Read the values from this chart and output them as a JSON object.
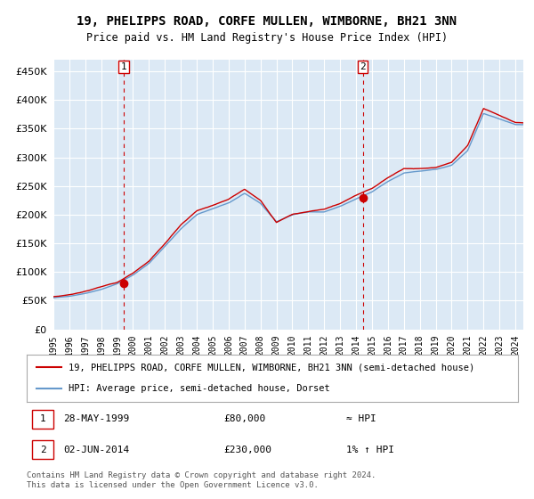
{
  "title": "19, PHELIPPS ROAD, CORFE MULLEN, WIMBORNE, BH21 3NN",
  "subtitle": "Price paid vs. HM Land Registry's House Price Index (HPI)",
  "xlabel": "",
  "ylabel": "",
  "ylim": [
    0,
    470000
  ],
  "yticks": [
    0,
    50000,
    100000,
    150000,
    200000,
    250000,
    300000,
    350000,
    400000,
    450000
  ],
  "ytick_labels": [
    "£0",
    "£50K",
    "£100K",
    "£150K",
    "£200K",
    "£250K",
    "£300K",
    "£350K",
    "£400K",
    "£450K"
  ],
  "bg_color": "#dce9f5",
  "plot_bg": "#dce9f5",
  "grid_color": "#ffffff",
  "hpi_color": "#6699cc",
  "price_color": "#cc0000",
  "marker_color": "#cc0000",
  "vline_color": "#cc0000",
  "sale1_year": 1999.41,
  "sale1_price": 80000,
  "sale2_year": 2014.42,
  "sale2_price": 230000,
  "start_year": 1995,
  "end_year": 2024.5,
  "legend_label_red": "19, PHELIPPS ROAD, CORFE MULLEN, WIMBORNE, BH21 3NN (semi-detached house)",
  "legend_label_blue": "HPI: Average price, semi-detached house, Dorset",
  "note1_num": "1",
  "note1_date": "28-MAY-1999",
  "note1_price": "£80,000",
  "note1_hpi": "≈ HPI",
  "note2_num": "2",
  "note2_date": "02-JUN-2014",
  "note2_price": "£230,000",
  "note2_hpi": "1% ↑ HPI",
  "footer": "Contains HM Land Registry data © Crown copyright and database right 2024.\nThis data is licensed under the Open Government Licence v3.0."
}
